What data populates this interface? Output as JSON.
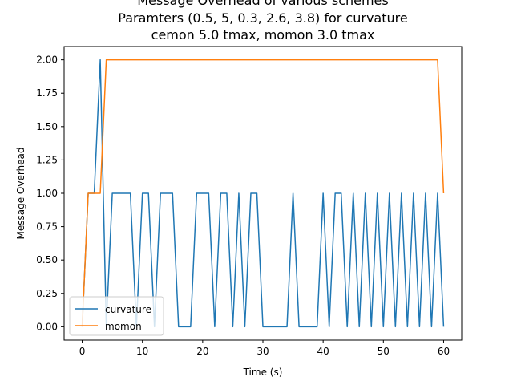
{
  "chart_data": {
    "type": "line",
    "title_lines": [
      "Message Overhead of various schemes",
      "Paramters (0.5, 5, 0.3, 2.6, 3.8) for curvature",
      "cemon 5.0 tmax, momon 3.0 tmax"
    ],
    "xlabel": "Time (s)",
    "ylabel": "Message Overhead",
    "xlim": [
      -3,
      63
    ],
    "ylim": [
      -0.1,
      2.1
    ],
    "xticks": [
      0,
      10,
      20,
      30,
      40,
      50,
      60
    ],
    "yticks": [
      "0.00",
      "0.25",
      "0.50",
      "0.75",
      "1.00",
      "1.25",
      "1.50",
      "1.75",
      "2.00"
    ],
    "legend_position": "bottom-left",
    "series": [
      {
        "name": "curvature",
        "color": "#1f77b4",
        "points": [
          [
            0,
            0
          ],
          [
            1,
            1
          ],
          [
            2,
            1
          ],
          [
            3,
            2
          ],
          [
            4,
            0
          ],
          [
            5,
            1
          ],
          [
            6,
            1
          ],
          [
            7,
            1
          ],
          [
            8,
            1
          ],
          [
            9,
            0
          ],
          [
            10,
            1
          ],
          [
            11,
            1
          ],
          [
            12,
            0
          ],
          [
            13,
            1
          ],
          [
            14,
            1
          ],
          [
            15,
            1
          ],
          [
            16,
            0
          ],
          [
            17,
            0
          ],
          [
            18,
            0
          ],
          [
            19,
            1
          ],
          [
            20,
            1
          ],
          [
            21,
            1
          ],
          [
            22,
            0
          ],
          [
            23,
            1
          ],
          [
            24,
            1
          ],
          [
            25,
            0
          ],
          [
            26,
            1
          ],
          [
            27,
            0
          ],
          [
            28,
            1
          ],
          [
            29,
            1
          ],
          [
            30,
            0
          ],
          [
            31,
            0
          ],
          [
            32,
            0
          ],
          [
            33,
            0
          ],
          [
            34,
            0
          ],
          [
            35,
            1
          ],
          [
            36,
            0
          ],
          [
            37,
            0
          ],
          [
            38,
            0
          ],
          [
            39,
            0
          ],
          [
            40,
            1
          ],
          [
            41,
            0
          ],
          [
            42,
            1
          ],
          [
            43,
            1
          ],
          [
            44,
            0
          ],
          [
            45,
            1
          ],
          [
            46,
            0
          ],
          [
            47,
            1
          ],
          [
            48,
            0
          ],
          [
            49,
            1
          ],
          [
            50,
            0
          ],
          [
            51,
            1
          ],
          [
            52,
            0
          ],
          [
            53,
            1
          ],
          [
            54,
            0
          ],
          [
            55,
            1
          ],
          [
            56,
            0
          ],
          [
            57,
            1
          ],
          [
            58,
            0
          ],
          [
            59,
            1
          ],
          [
            60,
            0
          ]
        ]
      },
      {
        "name": "momon",
        "color": "#ff7f0e",
        "points": [
          [
            0,
            0
          ],
          [
            1,
            1
          ],
          [
            2,
            1
          ],
          [
            3,
            1
          ],
          [
            4,
            2
          ],
          [
            5,
            2
          ],
          [
            10,
            2
          ],
          [
            20,
            2
          ],
          [
            30,
            2
          ],
          [
            40,
            2
          ],
          [
            50,
            2
          ],
          [
            59,
            2
          ],
          [
            60,
            1
          ]
        ]
      }
    ]
  }
}
